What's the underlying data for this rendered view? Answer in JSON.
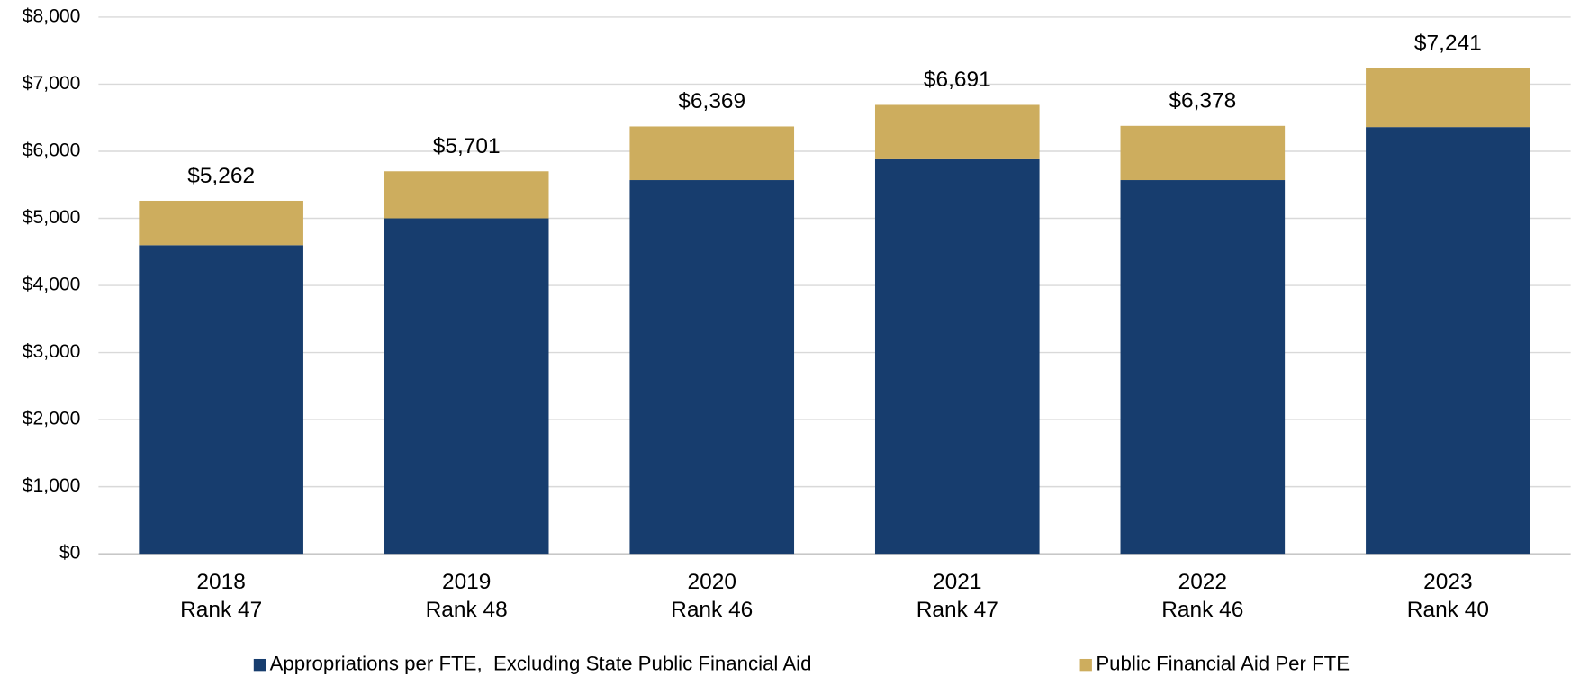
{
  "chart_data": {
    "type": "stacked_bar",
    "categories": [
      "2018",
      "2019",
      "2020",
      "2021",
      "2022",
      "2023"
    ],
    "ranks": [
      "Rank 47",
      "Rank 48",
      "Rank 46",
      "Rank 47",
      "Rank 46",
      "Rank 40"
    ],
    "series": [
      {
        "name": "Appropriations per FTE,  Excluding State Public Financial Aid",
        "color": "#173d6e",
        "values": [
          4600,
          5000,
          5570,
          5880,
          5570,
          6360
        ]
      },
      {
        "name": "Public Financial Aid Per FTE",
        "color": "#cdad5e",
        "values": [
          662,
          701,
          799,
          811,
          808,
          881
        ]
      }
    ],
    "totals": [
      5262,
      5701,
      6369,
      6691,
      6378,
      7241
    ],
    "total_labels": [
      "$5,262",
      "$5,701",
      "$6,369",
      "$6,691",
      "$6,378",
      "$7,241"
    ],
    "ylim": [
      0,
      8000
    ],
    "yticks": [
      {
        "value": 0,
        "label": "$0"
      },
      {
        "value": 1000,
        "label": "$1,000"
      },
      {
        "value": 2000,
        "label": "$2,000"
      },
      {
        "value": 3000,
        "label": "$3,000"
      },
      {
        "value": 4000,
        "label": "$4,000"
      },
      {
        "value": 5000,
        "label": "$5,000"
      },
      {
        "value": 6000,
        "label": "$6,000"
      },
      {
        "value": 7000,
        "label": "$7,000"
      },
      {
        "value": 8000,
        "label": "$8,000"
      }
    ],
    "grid": true
  }
}
